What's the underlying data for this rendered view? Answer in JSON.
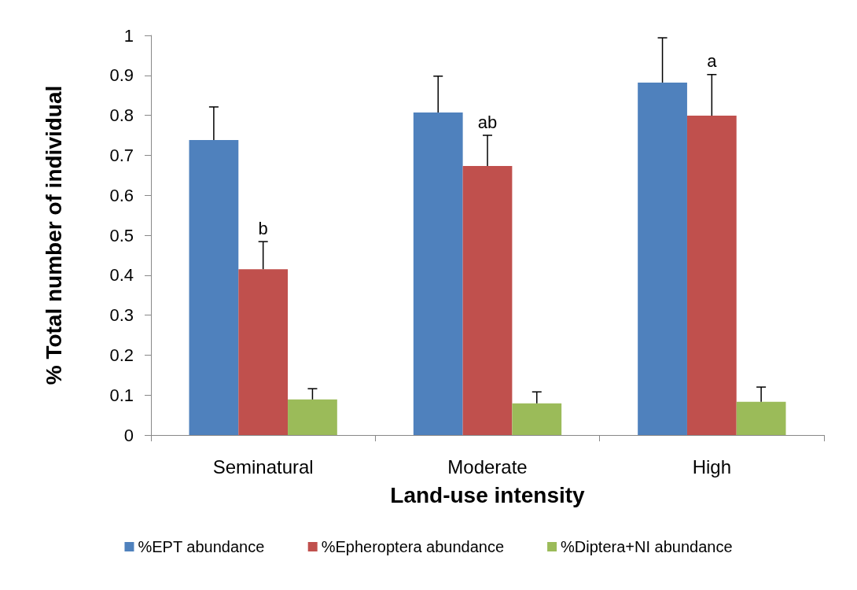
{
  "chart_data": {
    "type": "bar",
    "xlabel": "Land-use intensity",
    "ylabel": "% Total number of individual",
    "categories": [
      "Seminatural",
      "Moderate",
      "High"
    ],
    "series": [
      {
        "name": "%EPT abundance",
        "color": "#4f81bd",
        "values": [
          0.738,
          0.807,
          0.882
        ],
        "errors": [
          [
            0.738,
            0.821
          ],
          [
            0.807,
            0.898
          ],
          [
            0.882,
            0.994
          ]
        ]
      },
      {
        "name": "%Epheroptera abundance",
        "color": "#c0504d",
        "values": [
          0.415,
          0.673,
          0.799
        ],
        "errors": [
          [
            0.415,
            0.484
          ],
          [
            0.673,
            0.75
          ],
          [
            0.799,
            0.902
          ]
        ]
      },
      {
        "name": "%Diptera+NI abundance",
        "color": "#9bbb59",
        "values": [
          0.089,
          0.079,
          0.083
        ],
        "errors": [
          [
            0.089,
            0.116
          ],
          [
            0.079,
            0.108
          ],
          [
            0.083,
            0.12
          ]
        ]
      }
    ],
    "ylim": [
      0,
      1
    ],
    "yticks": [
      0,
      0.1,
      0.2,
      0.3,
      0.4,
      0.5,
      0.6,
      0.7,
      0.8,
      0.9,
      1
    ],
    "grid": false,
    "legend": "bottom",
    "annotations": [
      {
        "text": "b",
        "x": "Seminatural",
        "y": 0.484
      },
      {
        "text": "ab",
        "x": "Moderate",
        "y": 0.75
      },
      {
        "text": "a",
        "x": "High",
        "y": 0.902
      }
    ]
  }
}
